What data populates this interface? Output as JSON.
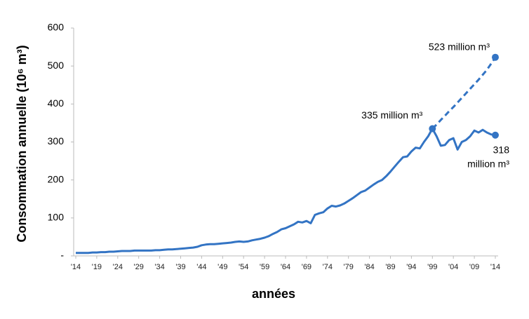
{
  "chart_data": {
    "type": "line",
    "xlabel": "années",
    "ylabel": "Consommation annuelle (10⁶ m³)",
    "categories": [
      "'14",
      null,
      null,
      null,
      null,
      "'19",
      null,
      null,
      null,
      null,
      "'24",
      null,
      null,
      null,
      null,
      "'29",
      null,
      null,
      null,
      null,
      "'34",
      null,
      null,
      null,
      null,
      "'39",
      null,
      null,
      null,
      null,
      "'44",
      null,
      null,
      null,
      null,
      "'49",
      null,
      null,
      null,
      null,
      "'54",
      null,
      null,
      null,
      null,
      "'59",
      null,
      null,
      null,
      null,
      "'64",
      null,
      null,
      null,
      null,
      "'69",
      null,
      null,
      null,
      null,
      "'74",
      null,
      null,
      null,
      null,
      "'79",
      null,
      null,
      null,
      null,
      "'84",
      null,
      null,
      null,
      null,
      "'89",
      null,
      null,
      null,
      null,
      "'94",
      null,
      null,
      null,
      null,
      "'99",
      null,
      null,
      null,
      null,
      "'04",
      null,
      null,
      null,
      null,
      "'09",
      null,
      null,
      null,
      null,
      "'14"
    ],
    "ylim": [
      0,
      600
    ],
    "yticks": [
      {
        "value": 0,
        "label": "-"
      },
      100,
      200,
      300,
      400,
      500,
      600
    ],
    "series": [
      {
        "color": "#3374c4",
        "dashed": false,
        "values": [
          8,
          8,
          8,
          8,
          9,
          9,
          10,
          10,
          11,
          11,
          12,
          13,
          13,
          13,
          14,
          14,
          14,
          14,
          14,
          15,
          15,
          16,
          17,
          17,
          18,
          19,
          20,
          21,
          22,
          24,
          28,
          30,
          31,
          31,
          32,
          33,
          34,
          35,
          37,
          38,
          37,
          38,
          41,
          43,
          45,
          48,
          52,
          58,
          63,
          70,
          73,
          78,
          83,
          90,
          88,
          92,
          86,
          108,
          112,
          115,
          125,
          132,
          130,
          133,
          138,
          145,
          152,
          160,
          168,
          172,
          180,
          188,
          195,
          200,
          210,
          222,
          235,
          248,
          260,
          262,
          275,
          285,
          283,
          300,
          315,
          335,
          315,
          290,
          292,
          305,
          310,
          280,
          300,
          305,
          315,
          330,
          325,
          332,
          325,
          320,
          318
        ]
      },
      {
        "color": "#3374c4",
        "dashed": true,
        "values": [
          null,
          null,
          null,
          null,
          null,
          null,
          null,
          null,
          null,
          null,
          null,
          null,
          null,
          null,
          null,
          null,
          null,
          null,
          null,
          null,
          null,
          null,
          null,
          null,
          null,
          null,
          null,
          null,
          null,
          null,
          null,
          null,
          null,
          null,
          null,
          null,
          null,
          null,
          null,
          null,
          null,
          null,
          null,
          null,
          null,
          null,
          null,
          null,
          null,
          null,
          null,
          null,
          null,
          null,
          null,
          null,
          null,
          null,
          null,
          null,
          null,
          null,
          null,
          null,
          null,
          null,
          null,
          null,
          null,
          null,
          null,
          null,
          null,
          null,
          null,
          null,
          null,
          null,
          null,
          null,
          null,
          null,
          null,
          null,
          null,
          335,
          346,
          358,
          369,
          381,
          392,
          404,
          416,
          428,
          440,
          452,
          464,
          477,
          490,
          506,
          523
        ]
      }
    ],
    "annotations": [
      {
        "lines": [
          "523 million m³"
        ]
      },
      {
        "lines": [
          "335 million m³"
        ]
      },
      {
        "lines": [
          "318",
          "million m³"
        ]
      }
    ]
  }
}
